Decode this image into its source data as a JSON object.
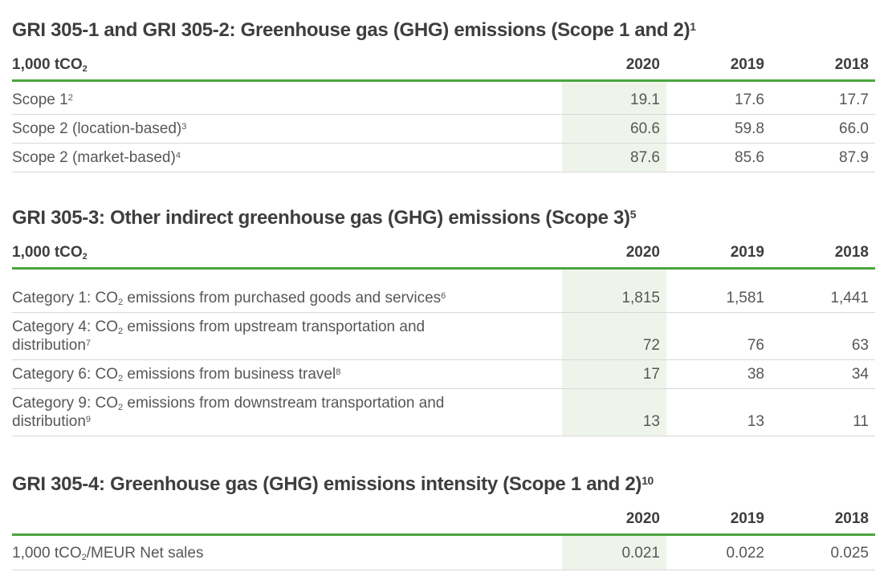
{
  "colors": {
    "accent_green": "#4aa53f",
    "highlight_green": "#eff4eb",
    "title_gray": "#3e3e3e",
    "text_gray": "#575756",
    "row_border": "#d8d8d8",
    "page_bg": "#ffffff"
  },
  "tables": [
    {
      "id": "gri-305-1-2",
      "title_segments": [
        {
          "t": "text",
          "v": "GRI 305-1 and GRI 305-2: Greenhouse gas (GHG) emissions (Scope 1 and 2)"
        },
        {
          "t": "sup",
          "v": "1"
        }
      ],
      "unit_segments": [
        {
          "t": "text",
          "v": "1,000 tCO"
        },
        {
          "t": "sub",
          "v": "2"
        }
      ],
      "years": [
        "2020",
        "2019",
        "2018"
      ],
      "rows": [
        {
          "label_segments": [
            {
              "t": "text",
              "v": "Scope 1"
            },
            {
              "t": "sup",
              "v": "2"
            }
          ],
          "values": [
            "19.1",
            "17.6",
            "17.7"
          ]
        },
        {
          "label_segments": [
            {
              "t": "text",
              "v": "Scope 2 (location-based)"
            },
            {
              "t": "sup",
              "v": "3"
            }
          ],
          "values": [
            "60.6",
            "59.8",
            "66.0"
          ]
        },
        {
          "label_segments": [
            {
              "t": "text",
              "v": "Scope 2 (market-based)"
            },
            {
              "t": "sup",
              "v": "4"
            }
          ],
          "values": [
            "87.6",
            "85.6",
            "87.9"
          ]
        }
      ]
    },
    {
      "id": "gri-305-3",
      "title_segments": [
        {
          "t": "text",
          "v": "GRI 305-3: Other indirect greenhouse gas (GHG) emissions (Scope 3)"
        },
        {
          "t": "sup",
          "v": "5"
        }
      ],
      "unit_segments": [
        {
          "t": "text",
          "v": "1,000 tCO"
        },
        {
          "t": "sub",
          "v": "2"
        }
      ],
      "years": [
        "2020",
        "2019",
        "2018"
      ],
      "rows": [
        {
          "label_segments": [
            {
              "t": "text",
              "v": "Category 1: CO"
            },
            {
              "t": "sub",
              "v": "2"
            },
            {
              "t": "text",
              "v": " emissions from purchased goods and services"
            },
            {
              "t": "sup",
              "v": "6"
            }
          ],
          "values": [
            "1,815",
            "1,581",
            "1,441"
          ]
        },
        {
          "label_segments": [
            {
              "t": "text",
              "v": "Category 4: CO"
            },
            {
              "t": "sub",
              "v": "2"
            },
            {
              "t": "text",
              "v": " emissions from upstream transportation and"
            },
            {
              "t": "br"
            },
            {
              "t": "text",
              "v": "distribution"
            },
            {
              "t": "sup",
              "v": "7"
            }
          ],
          "values": [
            "72",
            "76",
            "63"
          ]
        },
        {
          "label_segments": [
            {
              "t": "text",
              "v": "Category 6: CO"
            },
            {
              "t": "sub",
              "v": "2"
            },
            {
              "t": "text",
              "v": " emissions from business travel"
            },
            {
              "t": "sup",
              "v": "8"
            }
          ],
          "values": [
            "17",
            "38",
            "34"
          ]
        },
        {
          "label_segments": [
            {
              "t": "text",
              "v": "Category 9: CO"
            },
            {
              "t": "sub",
              "v": "2"
            },
            {
              "t": "text",
              "v": " emissions from downstream transportation and"
            },
            {
              "t": "br"
            },
            {
              "t": "text",
              "v": "distribution"
            },
            {
              "t": "sup",
              "v": "9"
            }
          ],
          "values": [
            "13",
            "13",
            "11"
          ]
        }
      ]
    },
    {
      "id": "gri-305-4",
      "title_segments": [
        {
          "t": "text",
          "v": "GRI 305-4: Greenhouse gas (GHG) emissions intensity (Scope 1 and 2)"
        },
        {
          "t": "sup",
          "v": "10"
        }
      ],
      "unit_segments": [],
      "years": [
        "2020",
        "2019",
        "2018"
      ],
      "rows": [
        {
          "label_segments": [
            {
              "t": "text",
              "v": "1,000 tCO"
            },
            {
              "t": "sub",
              "v": "2"
            },
            {
              "t": "text",
              "v": "/MEUR Net sales"
            }
          ],
          "values": [
            "0.021",
            "0.022",
            "0.025"
          ]
        }
      ]
    }
  ]
}
